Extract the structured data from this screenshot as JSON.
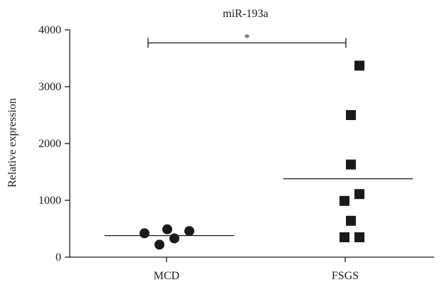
{
  "chart_data": {
    "type": "scatter",
    "title": "miR-193a",
    "ylabel": "Relative expression",
    "xlabel": "",
    "ylim": [
      0,
      4000
    ],
    "yticks": [
      0,
      1000,
      2000,
      3000,
      4000
    ],
    "ytick_labels": [
      "0",
      "1000",
      "2000",
      "3000",
      "4000"
    ],
    "grid": false,
    "categories": [
      "MCD",
      "FSGS"
    ],
    "series": [
      {
        "category": "MCD",
        "marker": "circle",
        "points": [
          {
            "x": "MCD",
            "y": 420
          },
          {
            "x": "MCD",
            "y": 490
          },
          {
            "x": "MCD",
            "y": 460
          },
          {
            "x": "MCD",
            "y": 220
          },
          {
            "x": "MCD",
            "y": 330
          }
        ],
        "mean": 380
      },
      {
        "category": "FSGS",
        "marker": "square",
        "points": [
          {
            "x": "FSGS",
            "y": 3370
          },
          {
            "x": "FSGS",
            "y": 2500
          },
          {
            "x": "FSGS",
            "y": 1630
          },
          {
            "x": "FSGS",
            "y": 1110
          },
          {
            "x": "FSGS",
            "y": 990
          },
          {
            "x": "FSGS",
            "y": 640
          },
          {
            "x": "FSGS",
            "y": 350
          },
          {
            "x": "FSGS",
            "y": 350
          }
        ],
        "mean": 1380
      }
    ],
    "significance": {
      "between": [
        "MCD",
        "FSGS"
      ],
      "y": 3770,
      "label": "*"
    },
    "colors": {
      "marker": "#1a1a1a",
      "axis": "#1a1a1a"
    }
  }
}
